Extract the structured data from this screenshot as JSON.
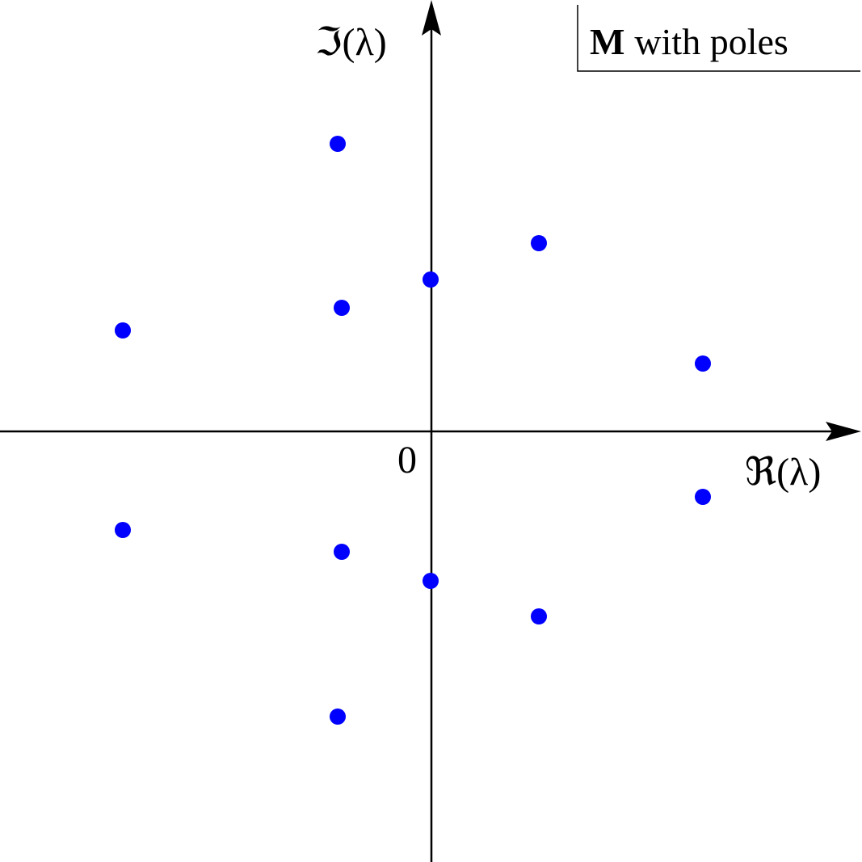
{
  "title": {
    "bold": "M",
    "text": "with poles"
  },
  "axes": {
    "y_label": "ℑ(λ)",
    "x_label": "ℜ(λ)",
    "origin": "0"
  }
}
